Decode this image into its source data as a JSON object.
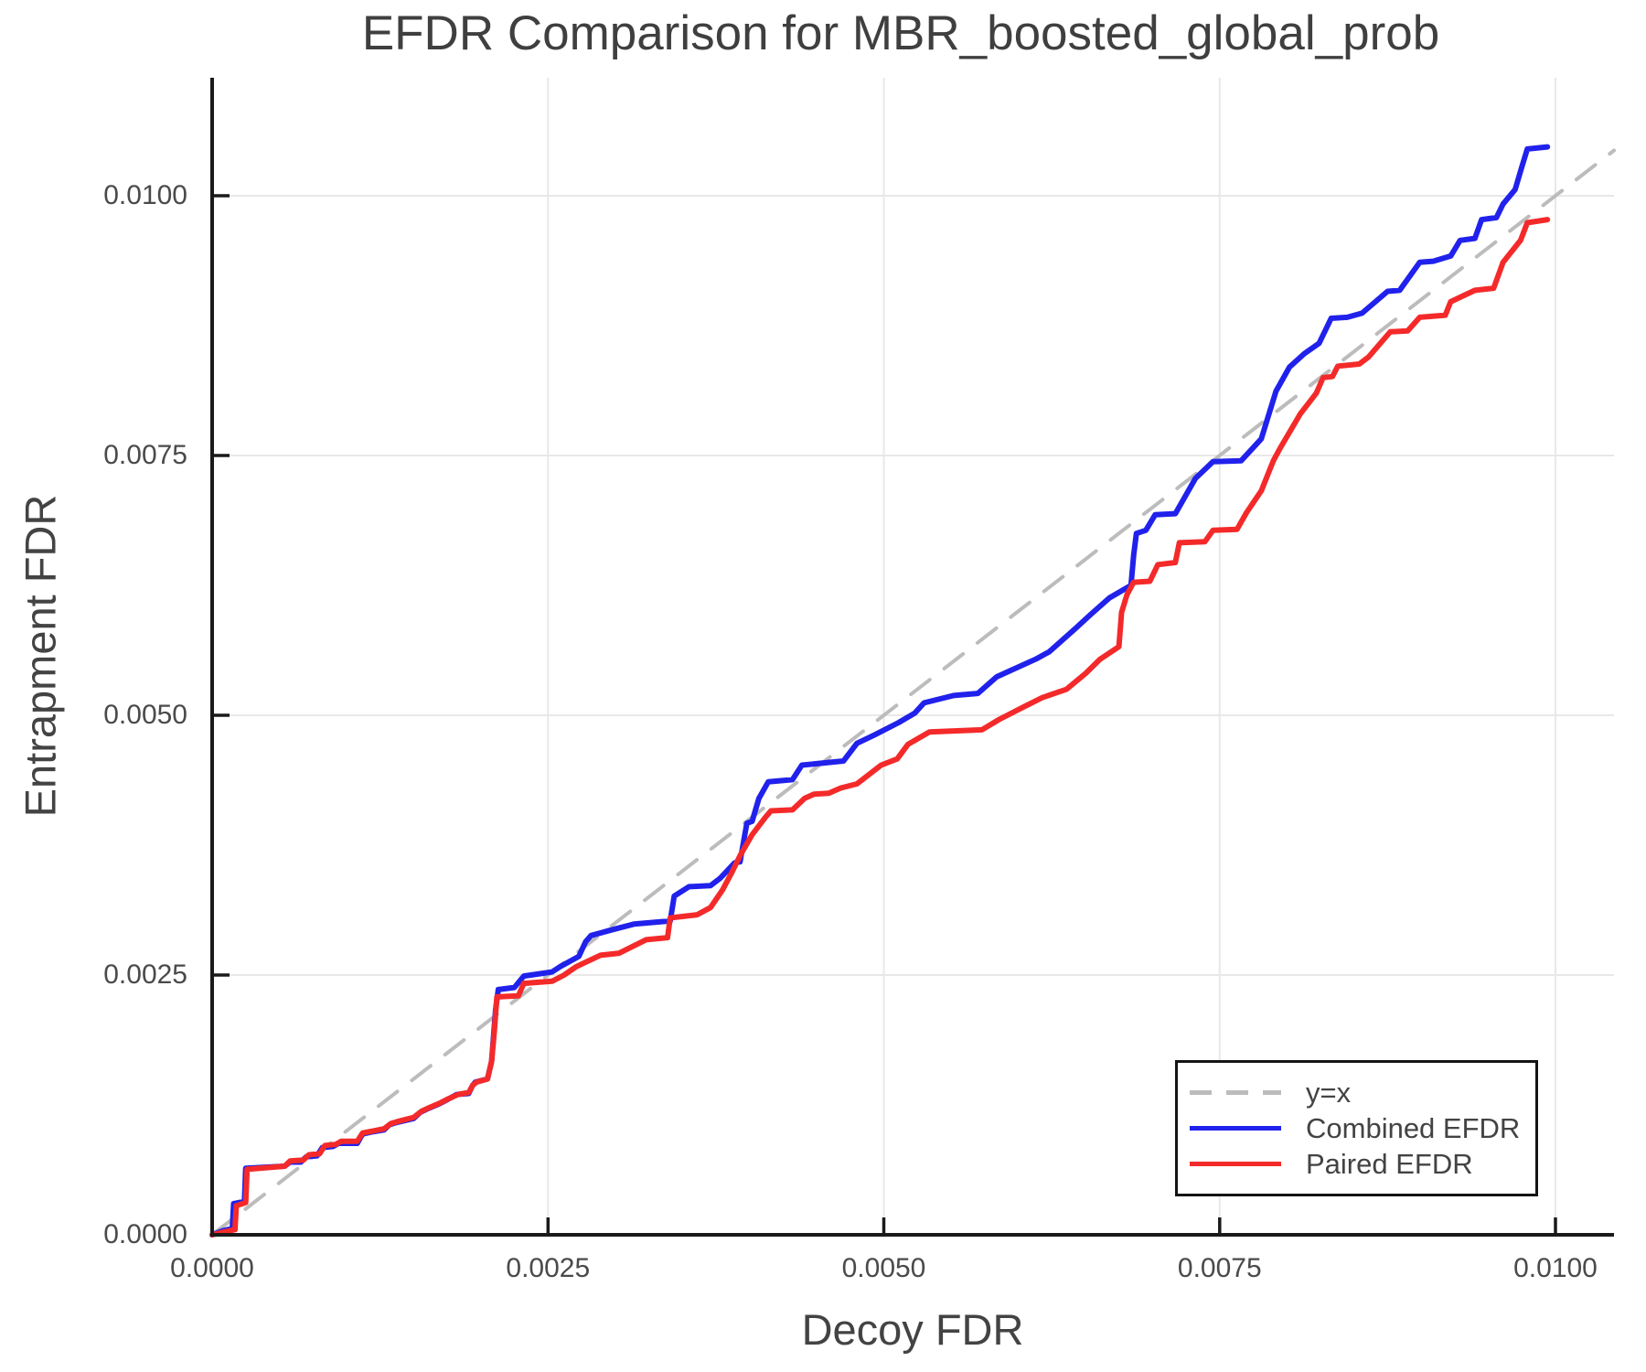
{
  "title": "EFDR Comparison for MBR_boosted_global_prob",
  "axes": {
    "x_label": "Decoy FDR",
    "y_label": "Entrapment FDR",
    "x_tick_labels": [
      "0.0000",
      "0.0025",
      "0.0050",
      "0.0075",
      "0.0100"
    ],
    "y_tick_labels": [
      "0.0000",
      "0.0025",
      "0.0050",
      "0.0075",
      "0.0100"
    ]
  },
  "legend": {
    "items": [
      {
        "label": "y=x",
        "style": "dashed",
        "color": "#bcbcbc"
      },
      {
        "label": "Combined EFDR",
        "style": "solid",
        "color": "#2121ec"
      },
      {
        "label": "Paired EFDR",
        "style": "solid",
        "color": "#f42a2a"
      }
    ]
  },
  "colors": {
    "grid": "#e8e8e8",
    "spine": "#1a1a1a",
    "identity_line": "#bcbcbc",
    "combined": "#2121ec",
    "paired": "#f42a2a",
    "text": "#434343"
  },
  "chart_data": {
    "type": "line",
    "title": "EFDR Comparison for MBR_boosted_global_prob",
    "xlabel": "Decoy FDR",
    "ylabel": "Entrapment FDR",
    "xlim": [
      0.0,
      0.01044
    ],
    "ylim": [
      0.0,
      0.01113
    ],
    "x_tick_values": [
      0.0,
      0.0025,
      0.005,
      0.0075,
      0.01
    ],
    "y_tick_values": [
      0.0,
      0.0025,
      0.005,
      0.0075,
      0.01
    ],
    "grid": true,
    "legend_position": "lower right",
    "series": [
      {
        "name": "y=x",
        "color": "#bcbcbc",
        "style": "dashed",
        "points": [
          [
            0.0,
            0.0
          ],
          [
            0.010436,
            0.010436
          ]
        ]
      },
      {
        "name": "Combined EFDR",
        "color": "#2121ec",
        "style": "solid",
        "points": [
          [
            0.0,
            0.0
          ],
          [
            8e-05,
            4e-05
          ],
          [
            0.00015,
            6e-05
          ],
          [
            0.00016,
            0.0003
          ],
          [
            0.00024,
            0.00032
          ],
          [
            0.00025,
            0.00064
          ],
          [
            0.00054,
            0.00066
          ],
          [
            0.00058,
            0.0007
          ],
          [
            0.00066,
            0.0007
          ],
          [
            0.0007,
            0.00075
          ],
          [
            0.00078,
            0.00076
          ],
          [
            0.00082,
            0.00084
          ],
          [
            0.0009,
            0.00085
          ],
          [
            0.00094,
            0.00088
          ],
          [
            0.00108,
            0.00088
          ],
          [
            0.00112,
            0.00097
          ],
          [
            0.00119,
            0.00099
          ],
          [
            0.00128,
            0.00101
          ],
          [
            0.00132,
            0.00106
          ],
          [
            0.00137,
            0.00108
          ],
          [
            0.0015,
            0.00112
          ],
          [
            0.00155,
            0.00118
          ],
          [
            0.0016,
            0.00121
          ],
          [
            0.00169,
            0.00126
          ],
          [
            0.00175,
            0.0013
          ],
          [
            0.00182,
            0.00135
          ],
          [
            0.00191,
            0.00136
          ],
          [
            0.00194,
            0.00144
          ],
          [
            0.00196,
            0.00147
          ],
          [
            0.00205,
            0.0015
          ],
          [
            0.00208,
            0.00167
          ],
          [
            0.0021,
            0.002
          ],
          [
            0.00211,
            0.00217
          ],
          [
            0.00213,
            0.00236
          ],
          [
            0.00225,
            0.00238
          ],
          [
            0.00232,
            0.00249
          ],
          [
            0.00253,
            0.00253
          ],
          [
            0.00259,
            0.00258
          ],
          [
            0.00273,
            0.00268
          ],
          [
            0.00278,
            0.00282
          ],
          [
            0.00282,
            0.00288
          ],
          [
            0.00296,
            0.00293
          ],
          [
            0.00314,
            0.00299
          ],
          [
            0.00341,
            0.00302
          ],
          [
            0.00344,
            0.00326
          ],
          [
            0.00355,
            0.00335
          ],
          [
            0.00371,
            0.00336
          ],
          [
            0.00378,
            0.00343
          ],
          [
            0.00389,
            0.00358
          ],
          [
            0.00393,
            0.00359
          ],
          [
            0.00398,
            0.00396
          ],
          [
            0.00402,
            0.00398
          ],
          [
            0.00407,
            0.0042
          ],
          [
            0.00414,
            0.00436
          ],
          [
            0.00432,
            0.00438
          ],
          [
            0.00439,
            0.00452
          ],
          [
            0.0047,
            0.00456
          ],
          [
            0.0048,
            0.00473
          ],
          [
            0.00493,
            0.00481
          ],
          [
            0.00511,
            0.00493
          ],
          [
            0.00523,
            0.00502
          ],
          [
            0.0053,
            0.00512
          ],
          [
            0.00552,
            0.00519
          ],
          [
            0.0057,
            0.00521
          ],
          [
            0.00584,
            0.00537
          ],
          [
            0.00596,
            0.00544
          ],
          [
            0.00613,
            0.00554
          ],
          [
            0.00623,
            0.00561
          ],
          [
            0.00643,
            0.00584
          ],
          [
            0.00654,
            0.00597
          ],
          [
            0.00668,
            0.00613
          ],
          [
            0.00684,
            0.00625
          ],
          [
            0.00686,
            0.00654
          ],
          [
            0.00688,
            0.00675
          ],
          [
            0.00695,
            0.00678
          ],
          [
            0.00702,
            0.00693
          ],
          [
            0.00717,
            0.00694
          ],
          [
            0.00732,
            0.00728
          ],
          [
            0.00745,
            0.00744
          ],
          [
            0.00766,
            0.00745
          ],
          [
            0.00781,
            0.00766
          ],
          [
            0.00792,
            0.00812
          ],
          [
            0.00802,
            0.00835
          ],
          [
            0.00813,
            0.00848
          ],
          [
            0.00824,
            0.00858
          ],
          [
            0.00833,
            0.00882
          ],
          [
            0.00845,
            0.00883
          ],
          [
            0.00856,
            0.00887
          ],
          [
            0.00875,
            0.00908
          ],
          [
            0.00884,
            0.00909
          ],
          [
            0.00899,
            0.00936
          ],
          [
            0.00909,
            0.00937
          ],
          [
            0.00922,
            0.00942
          ],
          [
            0.00929,
            0.00957
          ],
          [
            0.0094,
            0.00959
          ],
          [
            0.00945,
            0.00977
          ],
          [
            0.00956,
            0.00979
          ],
          [
            0.00961,
            0.00992
          ],
          [
            0.0097,
            0.01006
          ],
          [
            0.00975,
            0.01028
          ],
          [
            0.00979,
            0.01045
          ],
          [
            0.00994,
            0.01047
          ]
        ]
      },
      {
        "name": "Paired EFDR",
        "color": "#f42a2a",
        "style": "solid",
        "points": [
          [
            0.0,
            0.0
          ],
          [
            0.0001,
            3e-05
          ],
          [
            0.00017,
            5e-05
          ],
          [
            0.00018,
            0.00028
          ],
          [
            0.00025,
            0.00031
          ],
          [
            0.00026,
            0.00063
          ],
          [
            0.00054,
            0.00066
          ],
          [
            0.00058,
            0.00071
          ],
          [
            0.00068,
            0.00072
          ],
          [
            0.00072,
            0.00077
          ],
          [
            0.0008,
            0.00078
          ],
          [
            0.00084,
            0.00086
          ],
          [
            0.00092,
            0.00087
          ],
          [
            0.00096,
            0.0009
          ],
          [
            0.00108,
            0.0009
          ],
          [
            0.00112,
            0.00098
          ],
          [
            0.0012,
            0.001
          ],
          [
            0.00128,
            0.00102
          ],
          [
            0.00133,
            0.00107
          ],
          [
            0.00138,
            0.00109
          ],
          [
            0.0015,
            0.00113
          ],
          [
            0.00156,
            0.00119
          ],
          [
            0.00161,
            0.00122
          ],
          [
            0.0017,
            0.00127
          ],
          [
            0.00176,
            0.00131
          ],
          [
            0.00183,
            0.00135
          ],
          [
            0.00191,
            0.00137
          ],
          [
            0.00194,
            0.00144
          ],
          [
            0.00197,
            0.00147
          ],
          [
            0.00205,
            0.0015
          ],
          [
            0.00208,
            0.00167
          ],
          [
            0.0021,
            0.00195
          ],
          [
            0.00212,
            0.00229
          ],
          [
            0.00228,
            0.0023
          ],
          [
            0.00232,
            0.00242
          ],
          [
            0.00253,
            0.00244
          ],
          [
            0.00262,
            0.0025
          ],
          [
            0.00271,
            0.00258
          ],
          [
            0.00289,
            0.00269
          ],
          [
            0.00303,
            0.00271
          ],
          [
            0.00323,
            0.00284
          ],
          [
            0.00339,
            0.00286
          ],
          [
            0.00341,
            0.00305
          ],
          [
            0.00361,
            0.00308
          ],
          [
            0.00371,
            0.00315
          ],
          [
            0.0038,
            0.00332
          ],
          [
            0.00387,
            0.00349
          ],
          [
            0.00393,
            0.00365
          ],
          [
            0.00402,
            0.00385
          ],
          [
            0.00412,
            0.00402
          ],
          [
            0.00416,
            0.00408
          ],
          [
            0.00432,
            0.00409
          ],
          [
            0.00441,
            0.0042
          ],
          [
            0.00448,
            0.00424
          ],
          [
            0.00459,
            0.00425
          ],
          [
            0.00468,
            0.0043
          ],
          [
            0.0048,
            0.00434
          ],
          [
            0.00498,
            0.00452
          ],
          [
            0.0051,
            0.00458
          ],
          [
            0.00518,
            0.00472
          ],
          [
            0.00534,
            0.00484
          ],
          [
            0.00573,
            0.00486
          ],
          [
            0.00586,
            0.00496
          ],
          [
            0.00604,
            0.00508
          ],
          [
            0.00618,
            0.00517
          ],
          [
            0.00636,
            0.00525
          ],
          [
            0.0065,
            0.0054
          ],
          [
            0.00661,
            0.00554
          ],
          [
            0.00675,
            0.00566
          ],
          [
            0.00677,
            0.00599
          ],
          [
            0.00681,
            0.00616
          ],
          [
            0.00686,
            0.00628
          ],
          [
            0.00698,
            0.00629
          ],
          [
            0.00704,
            0.00645
          ],
          [
            0.00717,
            0.00647
          ],
          [
            0.0072,
            0.00666
          ],
          [
            0.00739,
            0.00667
          ],
          [
            0.00745,
            0.00678
          ],
          [
            0.00763,
            0.00679
          ],
          [
            0.0077,
            0.00695
          ],
          [
            0.00781,
            0.00716
          ],
          [
            0.0079,
            0.00745
          ],
          [
            0.00795,
            0.00757
          ],
          [
            0.0081,
            0.0079
          ],
          [
            0.00822,
            0.0081
          ],
          [
            0.00827,
            0.00825
          ],
          [
            0.00834,
            0.00826
          ],
          [
            0.00838,
            0.00836
          ],
          [
            0.00854,
            0.00838
          ],
          [
            0.00861,
            0.00845
          ],
          [
            0.00877,
            0.00869
          ],
          [
            0.0089,
            0.0087
          ],
          [
            0.00899,
            0.00883
          ],
          [
            0.00918,
            0.00885
          ],
          [
            0.00922,
            0.00898
          ],
          [
            0.0094,
            0.00909
          ],
          [
            0.00954,
            0.00911
          ],
          [
            0.00961,
            0.00936
          ],
          [
            0.00974,
            0.00957
          ],
          [
            0.00979,
            0.00974
          ],
          [
            0.00994,
            0.00977
          ]
        ]
      }
    ]
  }
}
